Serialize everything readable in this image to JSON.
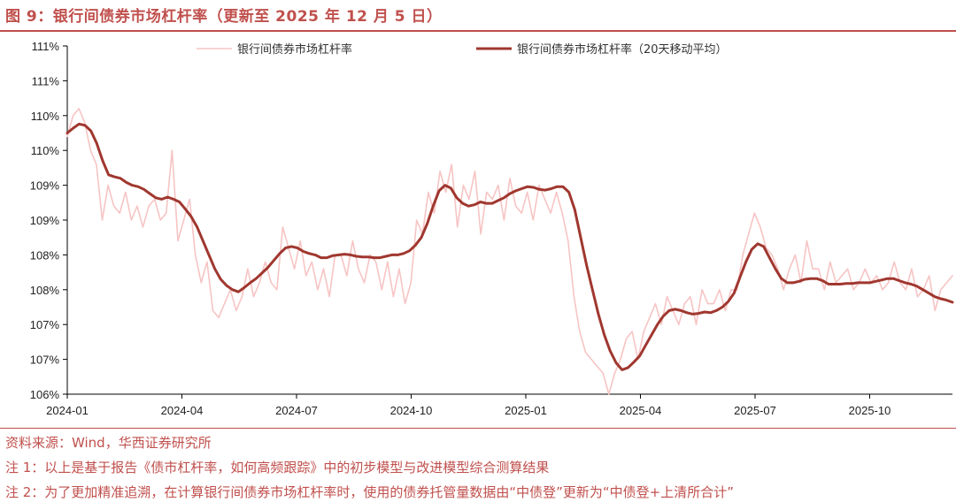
{
  "title": "图 9：银行间债券市场杠杆率（更新至 2025 年 12 月 5 日）",
  "footnotes": [
    "资料来源：Wind，华西证券研究所",
    "注 1：以上是基于报告《债市杠杆率，如何高频跟踪》中的初步模型与改进模型综合测算结果",
    "注 2：为了更加精准追溯，在计算银行间债券市场杠杆率时，使用的债券托管量数据由“中债登”更新为“中债登+上清所合计”"
  ],
  "colors": {
    "accent": "#C0504D",
    "daily": "#F7C4C4",
    "ma20": "#A0372F"
  },
  "chart_data": {
    "type": "line",
    "x_tick_labels": [
      "2024-01",
      "2024-04",
      "2024-07",
      "2024-10",
      "2025-01",
      "2025-04",
      "2025-07",
      "2025-10"
    ],
    "y_tick_labels": [
      "111%",
      "111%",
      "110%",
      "110%",
      "109%",
      "109%",
      "108%",
      "108%",
      "107%",
      "107%",
      "106%"
    ],
    "ylim": [
      106.0,
      111.0
    ],
    "legend_placement": "top",
    "series": [
      {
        "name": "银行间债券市场杠杆率",
        "values": [
          109.7,
          110.0,
          110.1,
          109.9,
          109.5,
          109.3,
          108.5,
          109.0,
          108.7,
          108.6,
          108.9,
          108.5,
          108.7,
          108.4,
          108.7,
          108.8,
          108.5,
          108.6,
          109.5,
          108.2,
          108.5,
          108.8,
          108.0,
          107.6,
          107.9,
          107.2,
          107.1,
          107.3,
          107.5,
          107.2,
          107.4,
          107.8,
          107.4,
          107.6,
          107.9,
          107.6,
          107.5,
          108.4,
          108.1,
          107.8,
          108.2,
          107.7,
          107.9,
          107.5,
          107.8,
          107.4,
          108.0,
          108.0,
          107.7,
          108.2,
          107.8,
          107.6,
          108.0,
          107.9,
          107.5,
          107.9,
          107.4,
          107.8,
          107.3,
          107.6,
          108.5,
          108.3,
          108.9,
          108.6,
          109.2,
          108.9,
          109.3,
          108.4,
          109.0,
          108.8,
          109.2,
          108.3,
          108.9,
          108.8,
          109.0,
          108.5,
          109.1,
          108.7,
          108.6,
          108.9,
          108.5,
          109.0,
          108.8,
          108.6,
          108.9,
          108.6,
          108.2,
          107.4,
          106.9,
          106.6,
          106.5,
          106.4,
          106.3,
          106.0,
          106.3,
          106.5,
          106.8,
          106.9,
          106.5,
          106.9,
          107.1,
          107.3,
          107.0,
          107.4,
          107.2,
          107.0,
          107.3,
          107.4,
          107.0,
          107.5,
          107.3,
          107.3,
          107.5,
          107.2,
          107.5,
          107.5,
          108.0,
          108.3,
          108.6,
          108.4,
          108.1,
          108.0,
          107.8,
          107.5,
          107.8,
          108.0,
          107.6,
          108.2,
          107.8,
          107.8,
          107.5,
          107.9,
          107.6,
          107.7,
          107.8,
          107.5,
          107.6,
          107.8,
          107.6,
          107.7,
          107.5,
          107.6,
          107.9,
          107.6,
          107.5,
          107.8,
          107.4,
          107.5,
          107.7,
          107.2,
          107.5,
          107.6,
          107.7
        ]
      },
      {
        "name": "银行间债券市场杠杆率（20天移动平均）",
        "values": [
          109.75,
          109.82,
          109.88,
          109.86,
          109.78,
          109.6,
          109.35,
          109.15,
          109.12,
          109.1,
          109.04,
          109.0,
          108.98,
          108.94,
          108.88,
          108.82,
          108.8,
          108.83,
          108.8,
          108.76,
          108.66,
          108.55,
          108.4,
          108.2,
          108.0,
          107.8,
          107.65,
          107.56,
          107.5,
          107.47,
          107.53,
          107.6,
          107.66,
          107.74,
          107.82,
          107.92,
          108.02,
          108.1,
          108.12,
          108.1,
          108.05,
          108.02,
          108.0,
          107.96,
          107.96,
          107.99,
          108.0,
          108.01,
          108.0,
          107.98,
          107.97,
          107.97,
          107.96,
          107.96,
          107.98,
          108.0,
          108.0,
          108.02,
          108.06,
          108.14,
          108.25,
          108.45,
          108.7,
          108.92,
          109.0,
          108.96,
          108.82,
          108.74,
          108.7,
          108.72,
          108.76,
          108.74,
          108.74,
          108.78,
          108.82,
          108.88,
          108.92,
          108.95,
          108.98,
          108.97,
          108.94,
          108.93,
          108.95,
          108.98,
          108.98,
          108.9,
          108.65,
          108.25,
          107.85,
          107.5,
          107.15,
          106.85,
          106.62,
          106.45,
          106.35,
          106.38,
          106.46,
          106.55,
          106.7,
          106.85,
          107.0,
          107.12,
          107.2,
          107.22,
          107.2,
          107.17,
          107.15,
          107.16,
          107.18,
          107.17,
          107.2,
          107.25,
          107.33,
          107.45,
          107.68,
          107.9,
          108.08,
          108.16,
          108.12,
          107.96,
          107.8,
          107.66,
          107.6,
          107.6,
          107.62,
          107.65,
          107.66,
          107.66,
          107.63,
          107.58,
          107.58,
          107.58,
          107.59,
          107.59,
          107.6,
          107.6,
          107.6,
          107.62,
          107.64,
          107.66,
          107.66,
          107.63,
          107.6,
          107.58,
          107.55,
          107.5,
          107.45,
          107.4,
          107.37,
          107.35,
          107.32
        ]
      }
    ]
  }
}
